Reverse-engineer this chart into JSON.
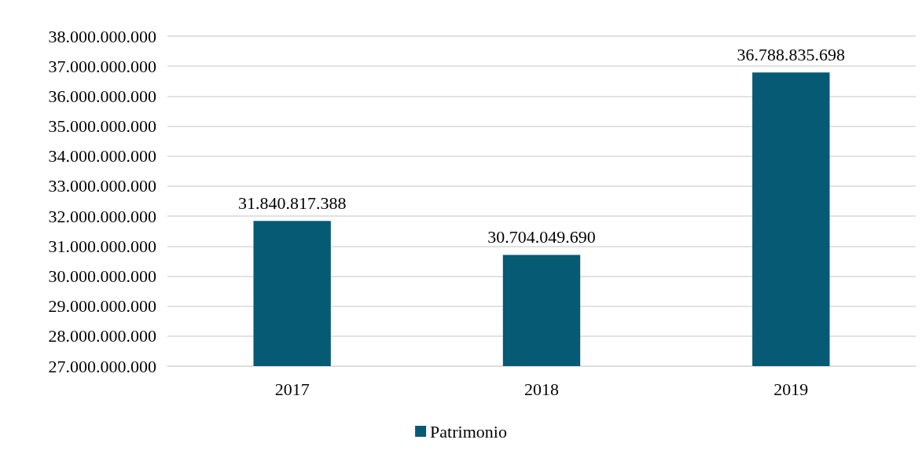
{
  "chart_data": {
    "type": "bar",
    "categories": [
      "2017",
      "2018",
      "2019"
    ],
    "series": [
      {
        "name": "Patrimonio",
        "color": "#065a73",
        "values": [
          31840817388,
          30704049690,
          36788835698
        ],
        "value_labels": [
          "31.840.817.388",
          "30.704.049.690",
          "36.788.835.698"
        ]
      }
    ],
    "ylim": [
      27000000000,
      38000000000
    ],
    "yticks": [
      {
        "value": 27000000000,
        "label": "27.000.000.000"
      },
      {
        "value": 28000000000,
        "label": "28.000.000.000"
      },
      {
        "value": 29000000000,
        "label": "29.000.000.000"
      },
      {
        "value": 30000000000,
        "label": "30.000.000.000"
      },
      {
        "value": 31000000000,
        "label": "31.000.000.000"
      },
      {
        "value": 32000000000,
        "label": "32.000.000.000"
      },
      {
        "value": 33000000000,
        "label": "33.000.000.000"
      },
      {
        "value": 34000000000,
        "label": "34.000.000.000"
      },
      {
        "value": 35000000000,
        "label": "35.000.000.000"
      },
      {
        "value": 36000000000,
        "label": "36.000.000.000"
      },
      {
        "value": 37000000000,
        "label": "37.000.000.000"
      },
      {
        "value": 38000000000,
        "label": "38.000.000.000"
      }
    ],
    "grid": "y",
    "legend": "bottom"
  }
}
